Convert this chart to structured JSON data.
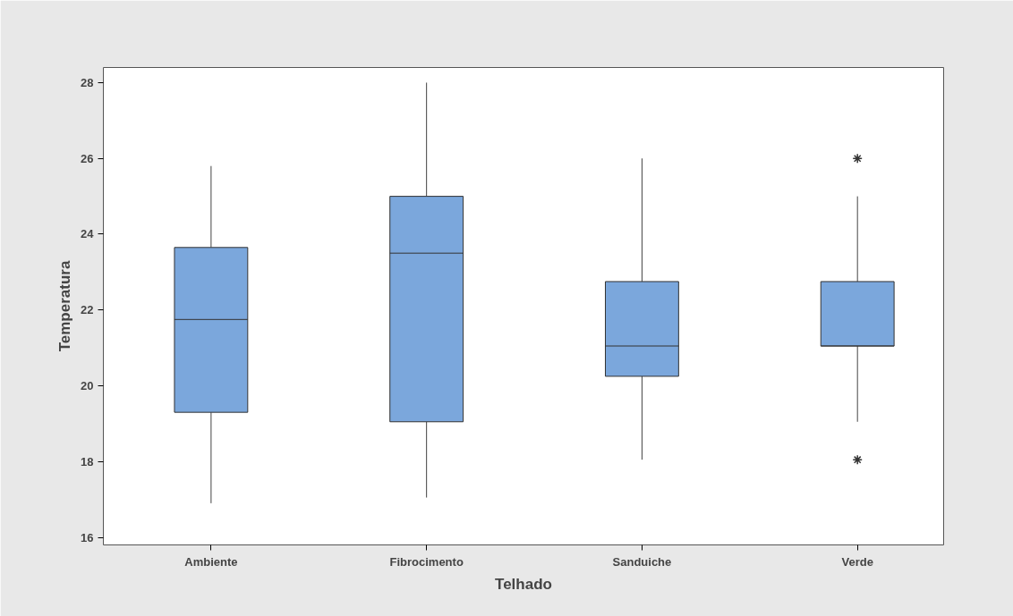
{
  "chart_data": {
    "type": "box",
    "xlabel": "Telhado",
    "ylabel": "Temperatura",
    "categories": [
      "Ambiente",
      "Fibrocimento",
      "Sanduiche",
      "Verde"
    ],
    "series": [
      {
        "color": "#7ba7dc",
        "boxes": [
          {
            "low": 16.9,
            "q1": 19.3,
            "median": 21.75,
            "q3": 23.65,
            "high": 25.8
          },
          {
            "low": 17.05,
            "q1": 19.05,
            "median": 23.5,
            "q3": 25.0,
            "high": 28.0
          },
          {
            "low": 18.05,
            "q1": 20.25,
            "median": 21.05,
            "q3": 22.75,
            "high": 26.0
          },
          {
            "low": 19.05,
            "q1": 21.05,
            "median": 21.05,
            "q3": 22.75,
            "high": 25.0,
            "outliers": [
              26.0,
              18.05
            ]
          }
        ]
      }
    ],
    "ylim": [
      15.8,
      28.4
    ],
    "yticks": [
      16,
      18,
      20,
      22,
      24,
      26,
      28
    ],
    "grid": false
  }
}
